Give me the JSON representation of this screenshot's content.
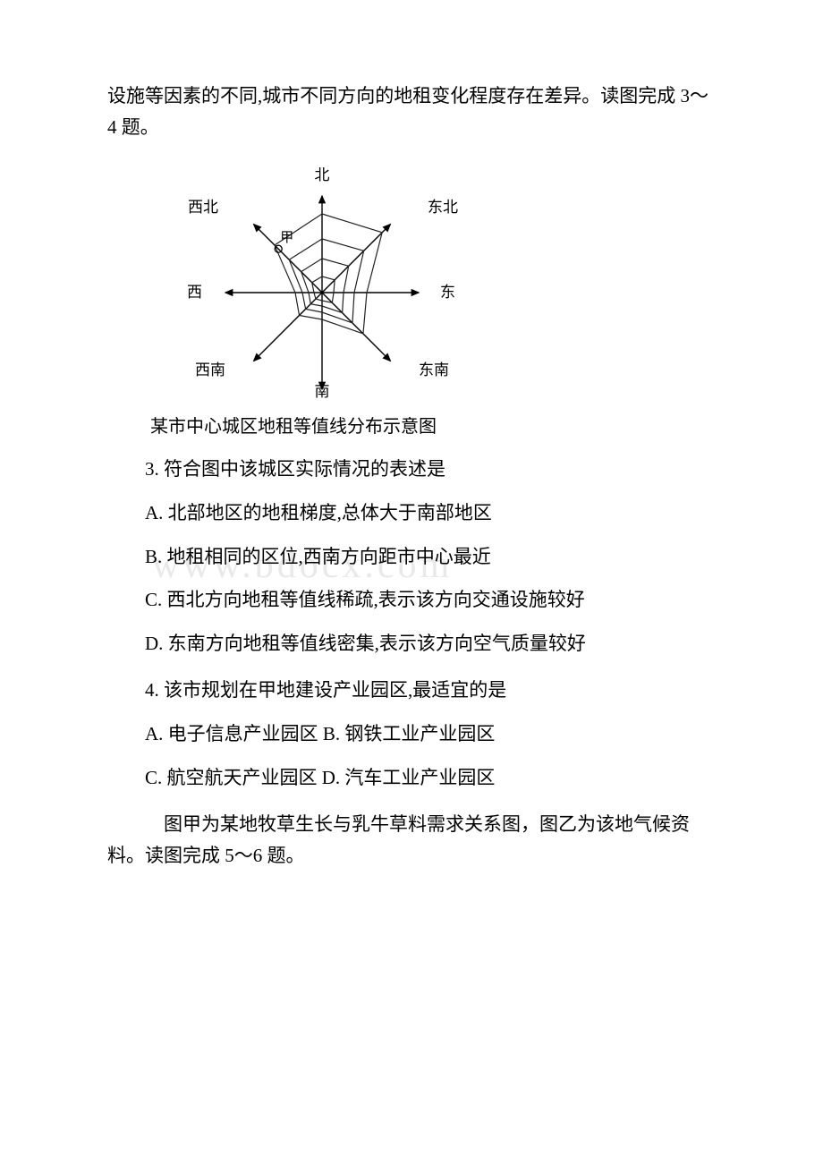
{
  "intro1": "设施等因素的不同,城市不同方向的地租变化程度存在差异。读图完成 3～4 题。",
  "caption": "某市中心城区地租等值线分布示意图",
  "diagram": {
    "type": "radar-like-isoline",
    "background_color": "#ffffff",
    "axis_color": "#000000",
    "line_color": "#222222",
    "directions": {
      "north": "北",
      "northeast": "东北",
      "east": "东",
      "southeast": "东南",
      "south": "南",
      "southwest": "西南",
      "west": "西",
      "northwest": "西北"
    },
    "marker_label": "甲",
    "contours": [
      {
        "r": {
          "N": 88,
          "NE": 95,
          "E": 50,
          "SE": 65,
          "S": 30,
          "SW": 36,
          "W": 30,
          "NW": 75
        }
      },
      {
        "r": {
          "N": 60,
          "NE": 66,
          "E": 36,
          "SE": 48,
          "S": 22,
          "SW": 26,
          "W": 22,
          "NW": 52
        }
      },
      {
        "r": {
          "N": 38,
          "NE": 42,
          "E": 24,
          "SE": 32,
          "S": 15,
          "SW": 18,
          "W": 15,
          "NW": 33
        }
      },
      {
        "r": {
          "N": 18,
          "NE": 20,
          "E": 13,
          "SE": 16,
          "S": 9,
          "SW": 10,
          "W": 9,
          "NW": 16
        }
      }
    ],
    "label_fontsize": 17
  },
  "q3": {
    "stem": "3. 符合图中该城区实际情况的表述是",
    "A": "A. 北部地区的地租梯度,总体大于南部地区",
    "B": "B. 地租相同的区位,西南方向距市中心最近",
    "C": "C. 西北方向地租等值线稀疏,表示该方向交通设施较好",
    "D": "D. 东南方向地租等值线密集,表示该方向空气质量较好"
  },
  "q4": {
    "stem": "4. 该市规划在甲地建设产业园区,最适宜的是",
    "A": "A. 电子信息产业园区",
    "B": "B. 钢铁工业产业园区",
    "C": "C. 航空航天产业园区",
    "D": "D. 汽车工业产业园区"
  },
  "intro2": "　图甲为某地牧草生长与乳牛草料需求关系图，图乙为该地气候资料。读图完成 5～6 题。",
  "watermark": "www.bdocx.com"
}
